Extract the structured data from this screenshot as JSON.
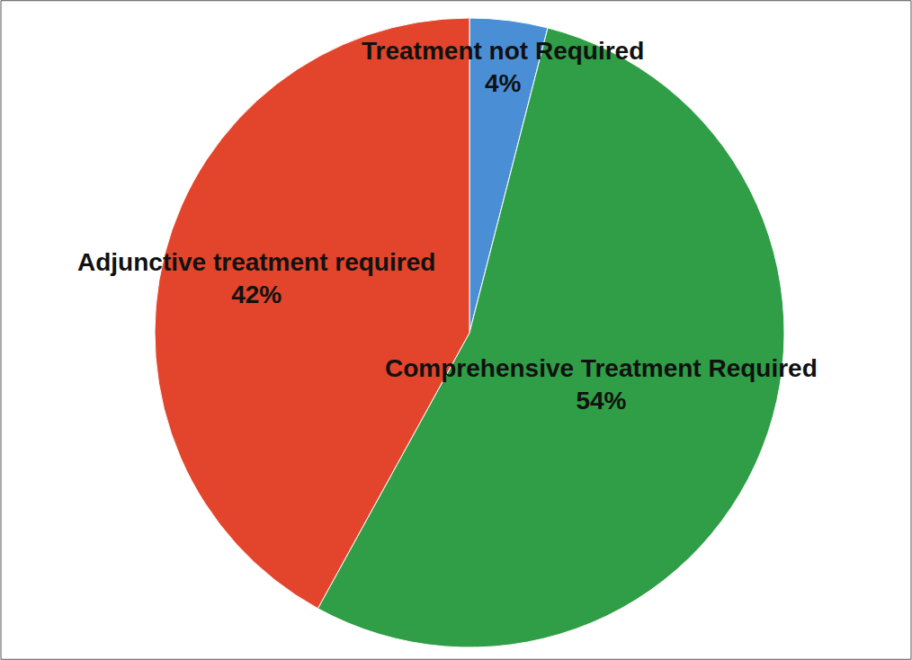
{
  "chart_data": {
    "type": "pie",
    "categories": [
      "Treatment not Required",
      "Comprehensive Treatment Required",
      "Adjunctive treatment required"
    ],
    "values": [
      4,
      54,
      42
    ],
    "value_labels": [
      "4%",
      "54%",
      "42%"
    ],
    "colors": [
      "#4a8fd6",
      "#2f9e46",
      "#e2452b"
    ],
    "data_labels": true
  }
}
